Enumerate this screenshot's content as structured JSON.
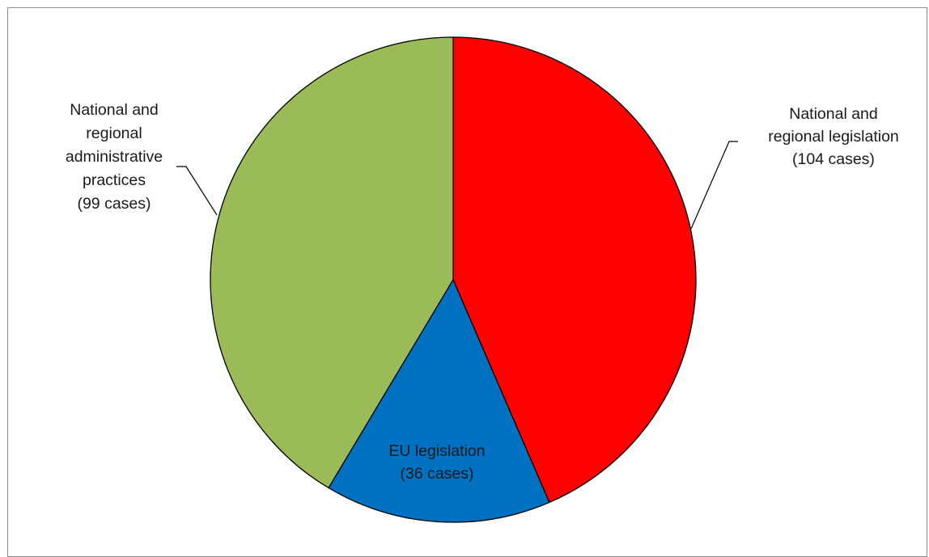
{
  "chart_data": {
    "type": "pie",
    "title": "",
    "slices": [
      {
        "label_lines": [
          "National and",
          "regional legislation",
          "(104 cases)"
        ],
        "value": 104,
        "color": "#ff0000"
      },
      {
        "label_lines": [
          "EU legislation",
          "(36 cases)"
        ],
        "value": 36,
        "color": "#0070c0"
      },
      {
        "label_lines": [
          "National and",
          "regional",
          "administrative",
          "practices",
          "(99 cases)"
        ],
        "value": 99,
        "color": "#9bbb59"
      }
    ],
    "start_angle_deg": 0,
    "direction": "clockwise",
    "legend": "none"
  }
}
